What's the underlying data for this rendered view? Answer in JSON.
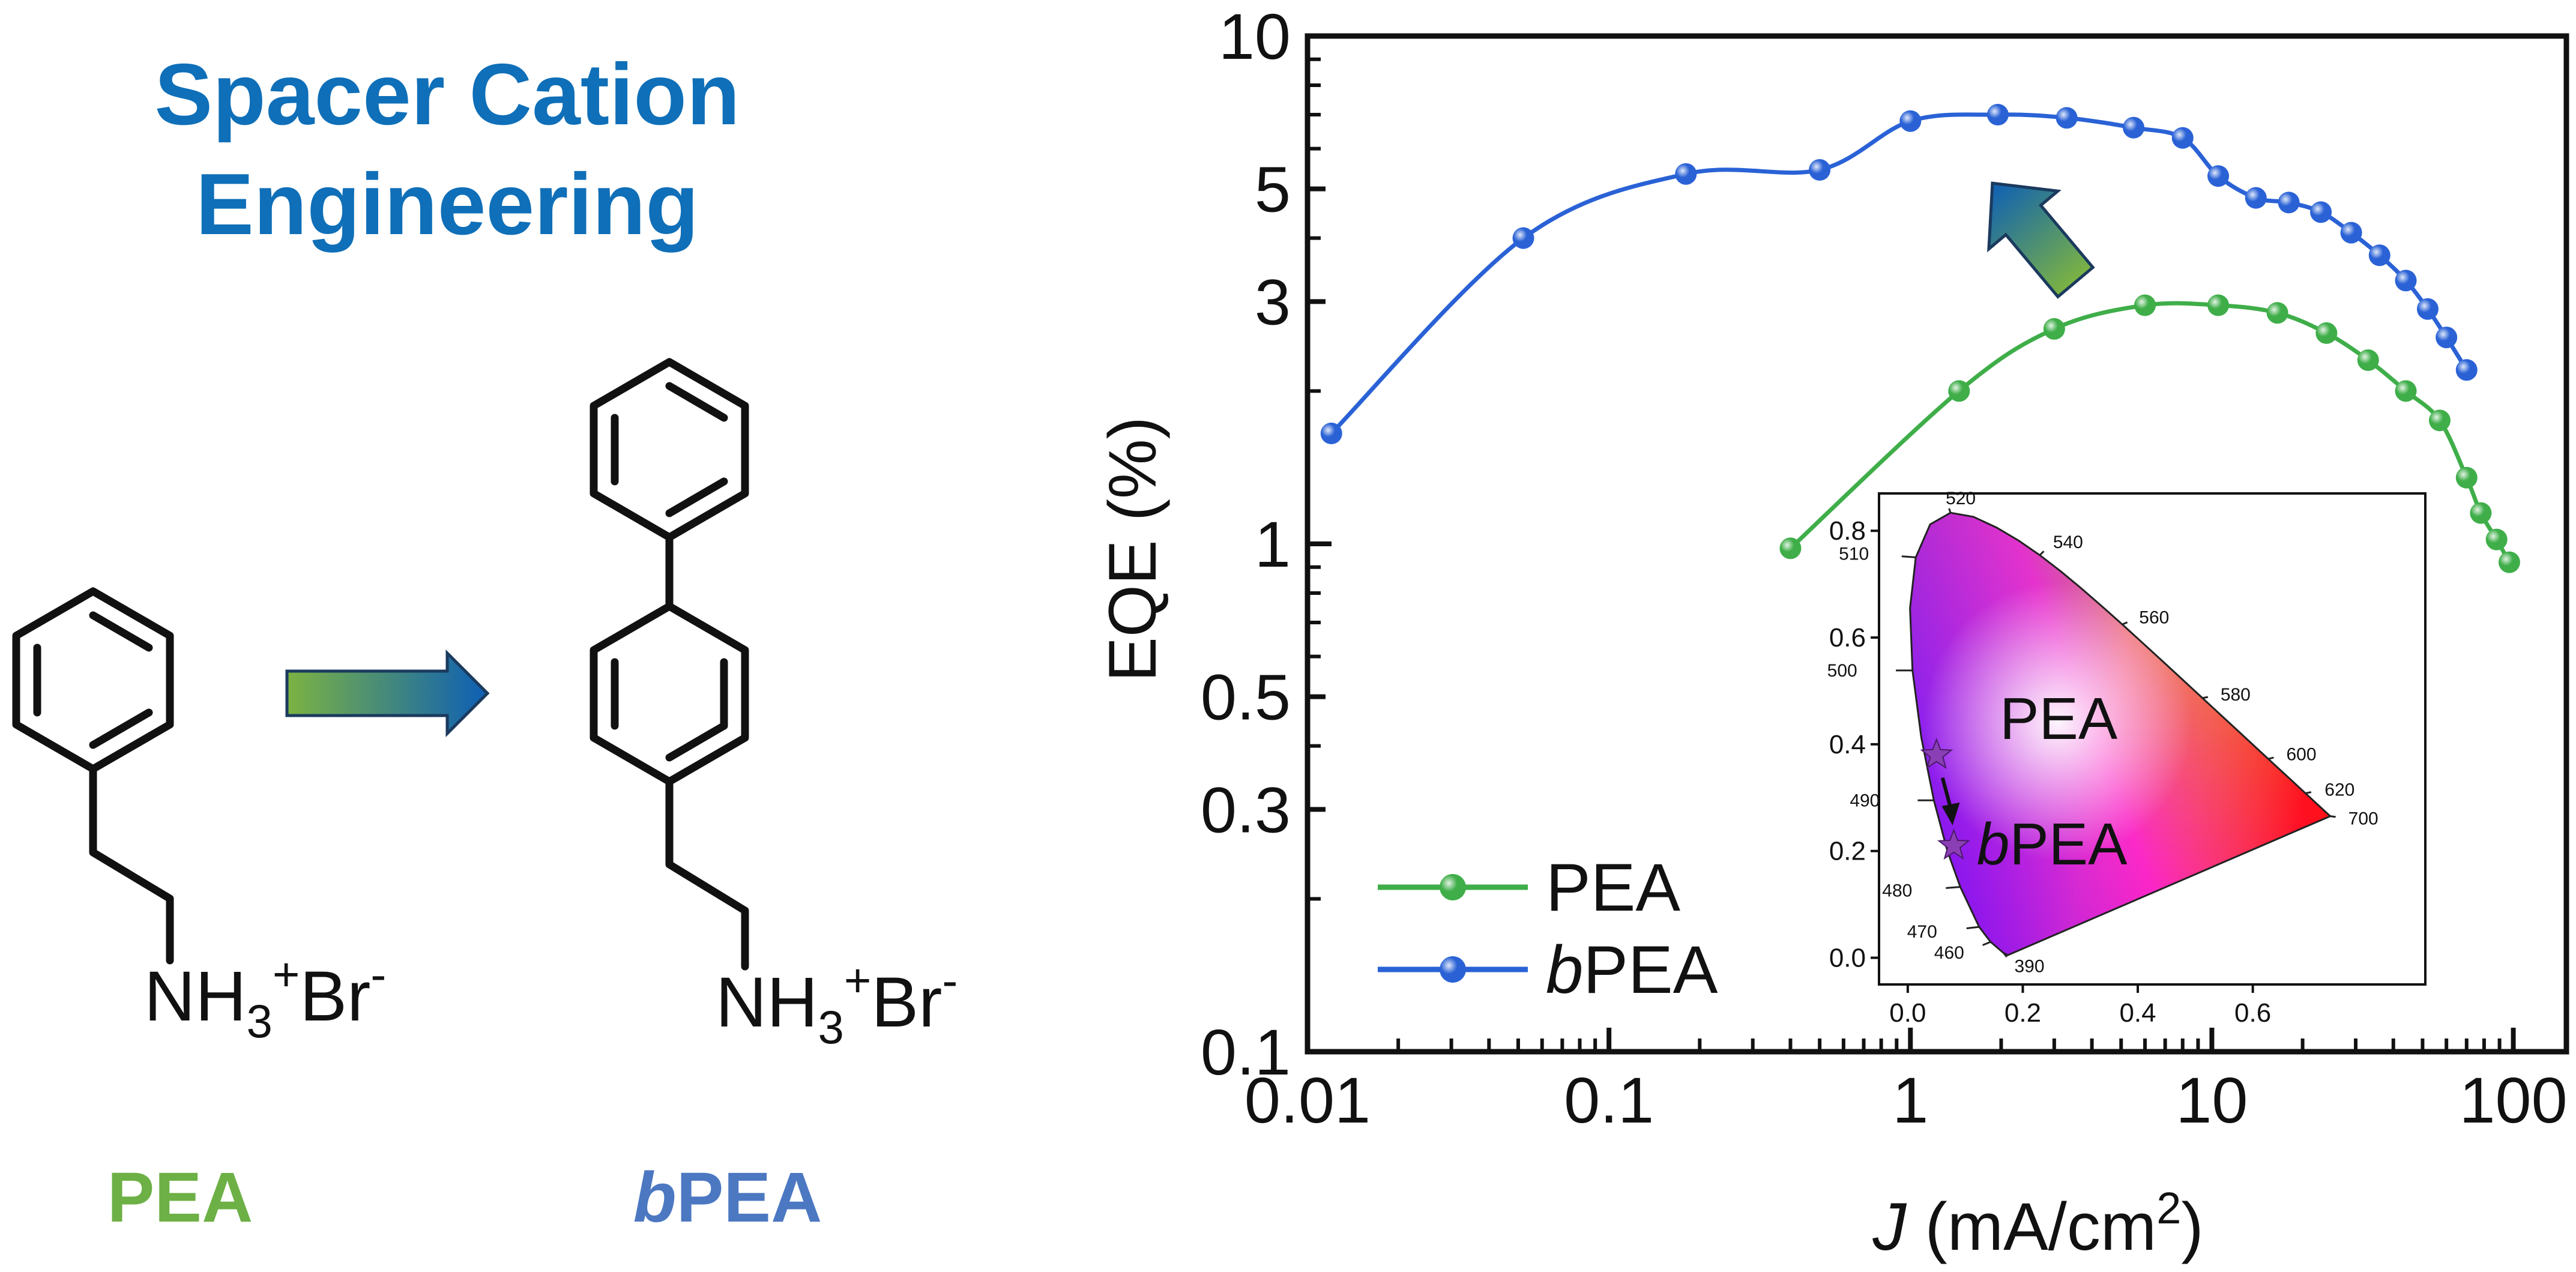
{
  "left_panel": {
    "title_line1": "Spacer Cation",
    "title_line2": "Engineering",
    "pea_formula": {
      "nh": "NH",
      "sub": "3",
      "plus": "+",
      "br": "Br",
      "minus": "-"
    },
    "bpea_formula": {
      "nh": "NH",
      "sub": "3",
      "plus": "+",
      "br": "Br",
      "minus": "-"
    },
    "pea_label": "PEA",
    "bpea_label_italic": "b",
    "bpea_label_rest": "PEA"
  },
  "colors": {
    "pea": "#3fae49",
    "bpea": "#2a62d6",
    "title": "#0f6fb8",
    "pea_label": "#6db046",
    "bpea_label": "#4c78c2",
    "arrow_start": "#7cb342",
    "arrow_end": "#0d5fb5"
  },
  "chart_data": [
    {
      "type": "line",
      "xscale": "log",
      "yscale": "log",
      "xlim": [
        0.01,
        150
      ],
      "ylim": [
        0.1,
        10
      ],
      "xlabel_italic": "J",
      "xlabel_rest": " (mA/cm",
      "xlabel_sup": "2",
      "xlabel_close": ")",
      "ylabel": "EQE (%)",
      "xticks": [
        {
          "value": 0.01,
          "label": "0.01"
        },
        {
          "value": 0.1,
          "label": "0.1"
        },
        {
          "value": 1,
          "label": "1"
        },
        {
          "value": 10,
          "label": "10"
        },
        {
          "value": 100,
          "label": "100"
        }
      ],
      "yticks": [
        {
          "value": 0.1,
          "label": "0.1"
        },
        {
          "value": 0.3,
          "label": "0.3"
        },
        {
          "value": 0.5,
          "label": "0.5"
        },
        {
          "value": 1,
          "label": "1"
        },
        {
          "value": 3,
          "label": "3"
        },
        {
          "value": 5,
          "label": "5"
        },
        {
          "value": 10,
          "label": "10"
        }
      ],
      "legend_position": "bottom-left",
      "series": [
        {
          "name": "PEA",
          "name_italic": "",
          "name_rest": "PEA",
          "color": "#3fae49",
          "x": [
            0.4,
            1.45,
            3.0,
            6.0,
            10.5,
            16.5,
            24,
            33,
            44,
            57,
            70,
            78,
            88,
            97
          ],
          "y": [
            0.98,
            2.0,
            2.65,
            2.95,
            2.95,
            2.85,
            2.6,
            2.3,
            2.0,
            1.75,
            1.35,
            1.15,
            1.02,
            0.92
          ]
        },
        {
          "name": "bPEA",
          "name_italic": "b",
          "name_rest": "PEA",
          "color": "#2a62d6",
          "x": [
            0.012,
            0.052,
            0.18,
            0.5,
            1.0,
            1.95,
            3.3,
            5.5,
            8.0,
            10.5,
            14,
            18,
            23,
            29,
            36,
            44,
            52,
            60,
            70
          ],
          "y": [
            1.65,
            4.0,
            5.35,
            5.45,
            6.8,
            7.0,
            6.9,
            6.6,
            6.3,
            5.3,
            4.8,
            4.7,
            4.5,
            4.1,
            3.7,
            3.3,
            2.9,
            2.55,
            2.2
          ]
        }
      ],
      "annotations": [
        "up-arrow from PEA curve to bPEA curve"
      ]
    },
    {
      "type": "scatter",
      "name": "CIE 1931 chromaticity inset",
      "xlim": [
        -0.05,
        0.9
      ],
      "ylim": [
        -0.05,
        0.87
      ],
      "xticks": [
        {
          "value": 0.0,
          "label": "0.0"
        },
        {
          "value": 0.2,
          "label": "0.2"
        },
        {
          "value": 0.4,
          "label": "0.4"
        },
        {
          "value": 0.6,
          "label": "0.6"
        }
      ],
      "yticks": [
        {
          "value": 0.0,
          "label": "0.0"
        },
        {
          "value": 0.2,
          "label": "0.2"
        },
        {
          "value": 0.4,
          "label": "0.4"
        },
        {
          "value": 0.6,
          "label": "0.6"
        },
        {
          "value": 0.8,
          "label": "0.8"
        }
      ],
      "wavelength_labels": [
        {
          "nm": "390",
          "x": 0.1666,
          "y": 0.0089
        },
        {
          "nm": "460",
          "x": 0.144,
          "y": 0.0297
        },
        {
          "nm": "470",
          "x": 0.1241,
          "y": 0.0578
        },
        {
          "nm": "480",
          "x": 0.0913,
          "y": 0.1327
        },
        {
          "nm": "490",
          "x": 0.0454,
          "y": 0.295
        },
        {
          "nm": "500",
          "x": 0.0082,
          "y": 0.5384
        },
        {
          "nm": "510",
          "x": 0.0139,
          "y": 0.7502
        },
        {
          "nm": "520",
          "x": 0.0743,
          "y": 0.8338
        },
        {
          "nm": "540",
          "x": 0.2296,
          "y": 0.7543
        },
        {
          "nm": "560",
          "x": 0.3731,
          "y": 0.6245
        },
        {
          "nm": "580",
          "x": 0.5125,
          "y": 0.4866
        },
        {
          "nm": "600",
          "x": 0.627,
          "y": 0.3725
        },
        {
          "nm": "620",
          "x": 0.6915,
          "y": 0.3083
        },
        {
          "nm": "700",
          "x": 0.7347,
          "y": 0.2653
        }
      ],
      "points": [
        {
          "name": "PEA",
          "x": 0.05,
          "y": 0.38
        },
        {
          "name": "bPEA",
          "x": 0.08,
          "y": 0.21
        }
      ],
      "point_labels": {
        "pea": "PEA",
        "bpea_italic": "b",
        "bpea_rest": "PEA"
      },
      "star_color": "#8b3fb5"
    }
  ]
}
